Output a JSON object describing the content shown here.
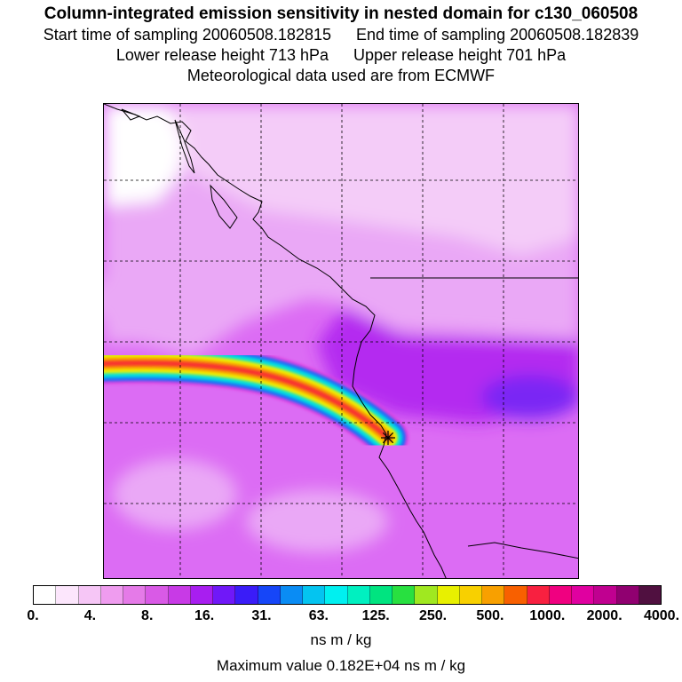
{
  "title": "Column-integrated emission sensitivity in nested domain for c130_060508",
  "start_label": "Start time of sampling 20060508.182815",
  "end_label": "End time of sampling 20060508.182839",
  "lower_label": "Lower release height  713 hPa",
  "upper_label": "Upper release height  701 hPa",
  "met_label": "Meteorological data used are from ECMWF",
  "legend": {
    "colors": [
      "#ffffff",
      "#fce6fc",
      "#f6c6f6",
      "#ef9cef",
      "#e57ae8",
      "#d95ae6",
      "#c83ae6",
      "#a81ef0",
      "#7018f8",
      "#3a1cf8",
      "#1646f8",
      "#0a8cf4",
      "#04c4f0",
      "#00f0f0",
      "#00f0c0",
      "#00e480",
      "#28e040",
      "#a0e820",
      "#e8f000",
      "#f8d000",
      "#f8a000",
      "#f86000",
      "#f82040",
      "#f00080",
      "#e000a0",
      "#c00090",
      "#900070",
      "#501040"
    ],
    "tick_labels": [
      "0.",
      "4.",
      "8.",
      "16.",
      "31.",
      "63.",
      "125.",
      "250.",
      "500.",
      "1000.",
      "2000.",
      "4000."
    ],
    "units": "ns m / kg"
  },
  "max_value_label": "Maximum value  0.182E+04 ns m / kg",
  "map_colors": {
    "base": "#dc6cf4",
    "light": "#eaa8f6",
    "pale": "#f4ccf8",
    "white": "#ffffff",
    "purple": "#b42cf0",
    "blue": "#7a28f4",
    "coast": "#000000",
    "grid": "#000000"
  },
  "plume": {
    "colors": [
      "#e040e0",
      "#1a6cf8",
      "#00e0e0",
      "#f0f000",
      "#f8a000",
      "#f83030"
    ]
  },
  "release_marker": "star-marker"
}
